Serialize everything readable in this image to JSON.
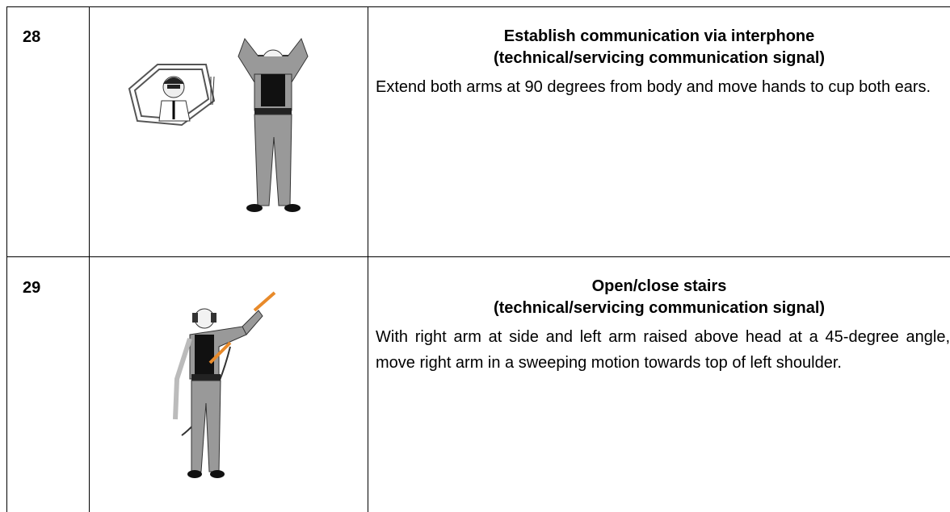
{
  "table": {
    "rows": [
      {
        "number": "28",
        "title": "Establish communication via interphone",
        "subtitle": "(technical/servicing communication signal)",
        "description": "Extend both arms at 90 degrees from body and move hands to cup both ears."
      },
      {
        "number": "29",
        "title": "Open/close stairs",
        "subtitle": "(technical/servicing communication signal)",
        "description": "With right arm at side and left arm raised above head at a 45-degree angle, move right arm in a sweeping motion towards top of left shoulder."
      }
    ]
  }
}
